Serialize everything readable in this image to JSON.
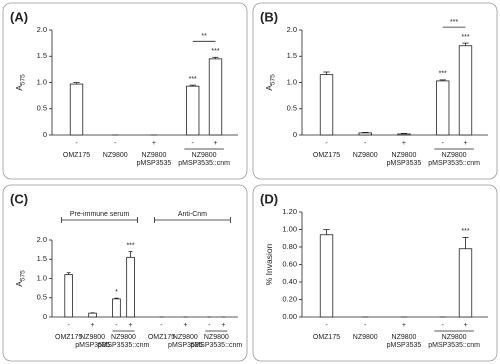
{
  "chart_data": [
    {
      "type": "bar",
      "panel_label": "(A)",
      "ylabel": "A",
      "ylabel_subscript": "575",
      "ylim": [
        0,
        2.0
      ],
      "yticks": [
        0,
        0.5,
        {
          "value": 1.0,
          "label": "1.0"
        },
        1.5,
        {
          "value": 2.0,
          "label": "2.0"
        }
      ],
      "color": "#ffffff",
      "groups": [
        {
          "label": [
            "OMZ175"
          ],
          "signs": [
            "-"
          ],
          "values": [
            0.97
          ],
          "errors": [
            0.03
          ],
          "stars": [
            null
          ]
        },
        {
          "label": [
            "NZ9800"
          ],
          "signs": [
            "-"
          ],
          "values": [
            0
          ],
          "errors": [
            0
          ],
          "stars": [
            null
          ]
        },
        {
          "label": [
            "NZ9800",
            "pMSP3535"
          ],
          "signs": [
            "+"
          ],
          "values": [
            0
          ],
          "errors": [
            0
          ],
          "stars": [
            null
          ]
        },
        {
          "label": [
            "NZ9800",
            "pMSP3535::cnm"
          ],
          "signs": [
            "-",
            "+"
          ],
          "values": [
            0.93,
            1.45
          ],
          "errors": [
            0.02,
            0.03
          ],
          "stars": [
            "***",
            "***"
          ],
          "bracket": "**"
        }
      ]
    },
    {
      "type": "bar",
      "panel_label": "(B)",
      "ylabel": "A",
      "ylabel_subscript": "575",
      "ylim": [
        0,
        2.0
      ],
      "yticks": [
        0,
        0.5,
        {
          "value": 1.0,
          "label": "1.0"
        },
        1.5,
        {
          "value": 2.0,
          "label": "2.0"
        }
      ],
      "color": "#ffffff",
      "groups": [
        {
          "label": [
            "OMZ175"
          ],
          "signs": [
            "-"
          ],
          "values": [
            1.15
          ],
          "errors": [
            0.05
          ],
          "stars": [
            null
          ]
        },
        {
          "label": [
            "NZ9800"
          ],
          "signs": [
            "-"
          ],
          "values": [
            0.04
          ],
          "errors": [
            0.01
          ],
          "stars": [
            null
          ]
        },
        {
          "label": [
            "NZ9800",
            "pMSP3535"
          ],
          "signs": [
            "+"
          ],
          "values": [
            0.02
          ],
          "errors": [
            0.01
          ],
          "stars": [
            null
          ]
        },
        {
          "label": [
            "NZ9800",
            "pMSP3535::cnm"
          ],
          "signs": [
            "-",
            "+"
          ],
          "values": [
            1.03,
            1.7
          ],
          "errors": [
            0.02,
            0.05
          ],
          "stars": [
            "***",
            "***"
          ],
          "bracket": "***"
        }
      ]
    },
    {
      "type": "bar",
      "panel_label": "(C)",
      "ylabel": "A",
      "ylabel_subscript": "575",
      "ylim": [
        0,
        2.0
      ],
      "yticks": [
        0,
        0.5,
        {
          "value": 1.0,
          "label": "1.0"
        },
        1.5,
        {
          "value": 2.0,
          "label": "2.0"
        }
      ],
      "color": "#ffffff",
      "sections": [
        {
          "label": "Pre-immune serum",
          "groups": [
            {
              "label": [
                "OMZ175"
              ],
              "signs": [
                "-"
              ],
              "values": [
                1.1
              ],
              "errors": [
                0.05
              ],
              "stars": [
                null
              ]
            },
            {
              "label": [
                "NZ9800",
                "pMSP3535"
              ],
              "signs": [
                "+"
              ],
              "values": [
                0.1
              ],
              "errors": [
                0.01
              ],
              "stars": [
                null
              ]
            },
            {
              "label": [
                "NZ9800",
                "pMSP3535::cnm"
              ],
              "signs": [
                "-",
                "+"
              ],
              "values": [
                0.47,
                1.55
              ],
              "errors": [
                0.02,
                0.15
              ],
              "stars": [
                "*",
                "***"
              ]
            }
          ]
        },
        {
          "label": "Anti-Cnm",
          "groups": [
            {
              "label": [
                "OMZ175"
              ],
              "signs": [
                "-"
              ],
              "values": [
                0
              ],
              "errors": [
                0
              ],
              "stars": [
                null
              ]
            },
            {
              "label": [
                "NZ9800",
                "pMSP3535"
              ],
              "signs": [
                "+"
              ],
              "values": [
                0
              ],
              "errors": [
                0
              ],
              "stars": [
                null
              ]
            },
            {
              "label": [
                "NZ9800",
                "pMSP3535::cnm"
              ],
              "signs": [
                "-",
                "+"
              ],
              "values": [
                0,
                0
              ],
              "errors": [
                0,
                0
              ],
              "stars": [
                null,
                null
              ]
            }
          ]
        }
      ]
    },
    {
      "type": "bar",
      "panel_label": "(D)",
      "ylabel": "% Invasion",
      "ylim": [
        0,
        1.2
      ],
      "yticks": [
        {
          "value": 0,
          "label": "0.00"
        },
        {
          "value": 0.2,
          "label": "0.20"
        },
        {
          "value": 0.4,
          "label": "0.40"
        },
        {
          "value": 0.6,
          "label": "0.60"
        },
        {
          "value": 0.8,
          "label": "0.80"
        },
        {
          "value": 1.0,
          "label": "1.00"
        },
        {
          "value": 1.2,
          "label": "1.20"
        }
      ],
      "color": "#ffffff",
      "groups": [
        {
          "label": [
            "OMZ175"
          ],
          "signs": [
            "-"
          ],
          "values": [
            0.94
          ],
          "errors": [
            0.06
          ],
          "stars": [
            null
          ]
        },
        {
          "label": [
            "NZ9800"
          ],
          "signs": [
            "-"
          ],
          "values": [
            0
          ],
          "errors": [
            0
          ],
          "stars": [
            null
          ]
        },
        {
          "label": [
            "NZ9800",
            "pMSP3535"
          ],
          "signs": [
            "+"
          ],
          "values": [
            0
          ],
          "errors": [
            0
          ],
          "stars": [
            null
          ]
        },
        {
          "label": [
            "NZ9800",
            "pMSP3535::cnm"
          ],
          "signs": [
            "-",
            "+"
          ],
          "values": [
            0,
            0.78
          ],
          "errors": [
            0,
            0.13
          ],
          "stars": [
            null,
            "***"
          ]
        }
      ]
    }
  ]
}
